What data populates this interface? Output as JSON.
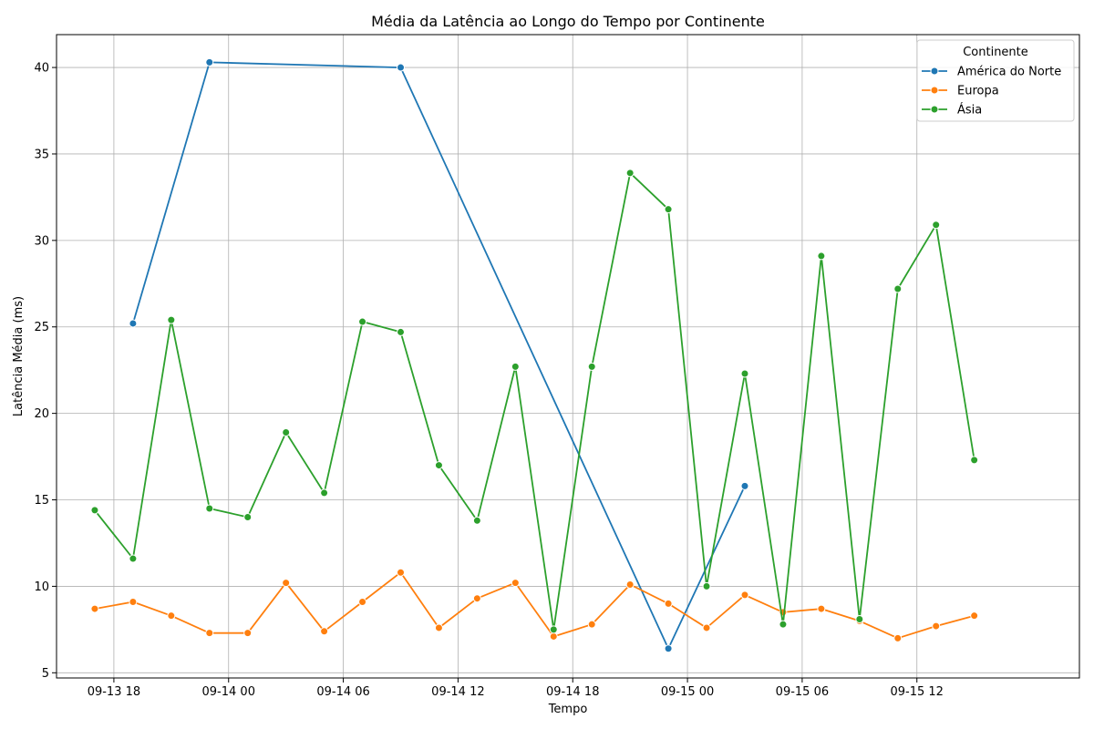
{
  "chart_data": {
    "type": "line",
    "title": "Média da Latência ao Longo do Tempo por Continente",
    "xlabel": "Tempo",
    "ylabel": "Latência Média (ms)",
    "xlim": [
      "2024-09-13 15:00",
      "2024-09-15 20:30"
    ],
    "ylim": [
      4.7,
      41.9
    ],
    "x_ticks": [
      {
        "x": "2024-09-13 18:00",
        "label": "09-13 18"
      },
      {
        "x": "2024-09-14 00:00",
        "label": "09-14 00"
      },
      {
        "x": "2024-09-14 06:00",
        "label": "09-14 06"
      },
      {
        "x": "2024-09-14 12:00",
        "label": "09-14 12"
      },
      {
        "x": "2024-09-14 18:00",
        "label": "09-14 18"
      },
      {
        "x": "2024-09-15 00:00",
        "label": "09-15 00"
      },
      {
        "x": "2024-09-15 06:00",
        "label": "09-15 06"
      },
      {
        "x": "2024-09-15 12:00",
        "label": "09-15 12"
      }
    ],
    "y_ticks": [
      5,
      10,
      15,
      20,
      25,
      30,
      35,
      40
    ],
    "grid": true,
    "legend": {
      "title": "Continente",
      "position": "top-right"
    },
    "series": [
      {
        "name": "América do Norte",
        "color": "#1f77b4",
        "points": [
          {
            "x": "2024-09-13 19:00",
            "y": 25.2
          },
          {
            "x": "2024-09-13 23:00",
            "y": 40.3
          },
          {
            "x": "2024-09-14 09:00",
            "y": 40.0
          },
          {
            "x": "2024-09-14 23:00",
            "y": 6.4
          },
          {
            "x": "2024-09-15 03:00",
            "y": 15.8
          }
        ]
      },
      {
        "name": "Europa",
        "color": "#ff7f0e",
        "points": [
          {
            "x": "2024-09-13 17:00",
            "y": 8.7
          },
          {
            "x": "2024-09-13 19:00",
            "y": 9.1
          },
          {
            "x": "2024-09-13 21:00",
            "y": 8.3
          },
          {
            "x": "2024-09-13 23:00",
            "y": 7.3
          },
          {
            "x": "2024-09-14 01:00",
            "y": 7.3
          },
          {
            "x": "2024-09-14 03:00",
            "y": 10.2
          },
          {
            "x": "2024-09-14 05:00",
            "y": 7.4
          },
          {
            "x": "2024-09-14 07:00",
            "y": 9.1
          },
          {
            "x": "2024-09-14 09:00",
            "y": 10.8
          },
          {
            "x": "2024-09-14 11:00",
            "y": 7.6
          },
          {
            "x": "2024-09-14 13:00",
            "y": 9.3
          },
          {
            "x": "2024-09-14 15:00",
            "y": 10.2
          },
          {
            "x": "2024-09-14 17:00",
            "y": 7.1
          },
          {
            "x": "2024-09-14 19:00",
            "y": 7.8
          },
          {
            "x": "2024-09-14 21:00",
            "y": 10.1
          },
          {
            "x": "2024-09-14 23:00",
            "y": 9.0
          },
          {
            "x": "2024-09-15 01:00",
            "y": 7.6
          },
          {
            "x": "2024-09-15 03:00",
            "y": 9.5
          },
          {
            "x": "2024-09-15 05:00",
            "y": 8.5
          },
          {
            "x": "2024-09-15 07:00",
            "y": 8.7
          },
          {
            "x": "2024-09-15 09:00",
            "y": 8.0
          },
          {
            "x": "2024-09-15 11:00",
            "y": 7.0
          },
          {
            "x": "2024-09-15 13:00",
            "y": 7.7
          },
          {
            "x": "2024-09-15 15:00",
            "y": 8.3
          }
        ]
      },
      {
        "name": "Ásia",
        "color": "#2ca02c",
        "points": [
          {
            "x": "2024-09-13 17:00",
            "y": 14.4
          },
          {
            "x": "2024-09-13 19:00",
            "y": 11.6
          },
          {
            "x": "2024-09-13 21:00",
            "y": 25.4
          },
          {
            "x": "2024-09-13 23:00",
            "y": 14.5
          },
          {
            "x": "2024-09-14 01:00",
            "y": 14.0
          },
          {
            "x": "2024-09-14 03:00",
            "y": 18.9
          },
          {
            "x": "2024-09-14 05:00",
            "y": 15.4
          },
          {
            "x": "2024-09-14 07:00",
            "y": 25.3
          },
          {
            "x": "2024-09-14 09:00",
            "y": 24.7
          },
          {
            "x": "2024-09-14 11:00",
            "y": 17.0
          },
          {
            "x": "2024-09-14 13:00",
            "y": 13.8
          },
          {
            "x": "2024-09-14 15:00",
            "y": 22.7
          },
          {
            "x": "2024-09-14 17:00",
            "y": 7.5
          },
          {
            "x": "2024-09-14 19:00",
            "y": 22.7
          },
          {
            "x": "2024-09-14 21:00",
            "y": 33.9
          },
          {
            "x": "2024-09-14 23:00",
            "y": 31.8
          },
          {
            "x": "2024-09-15 01:00",
            "y": 10.0
          },
          {
            "x": "2024-09-15 03:00",
            "y": 22.3
          },
          {
            "x": "2024-09-15 05:00",
            "y": 7.8
          },
          {
            "x": "2024-09-15 07:00",
            "y": 29.1
          },
          {
            "x": "2024-09-15 09:00",
            "y": 8.1
          },
          {
            "x": "2024-09-15 11:00",
            "y": 27.2
          },
          {
            "x": "2024-09-15 13:00",
            "y": 30.9
          },
          {
            "x": "2024-09-15 15:00",
            "y": 17.3
          }
        ]
      }
    ]
  }
}
